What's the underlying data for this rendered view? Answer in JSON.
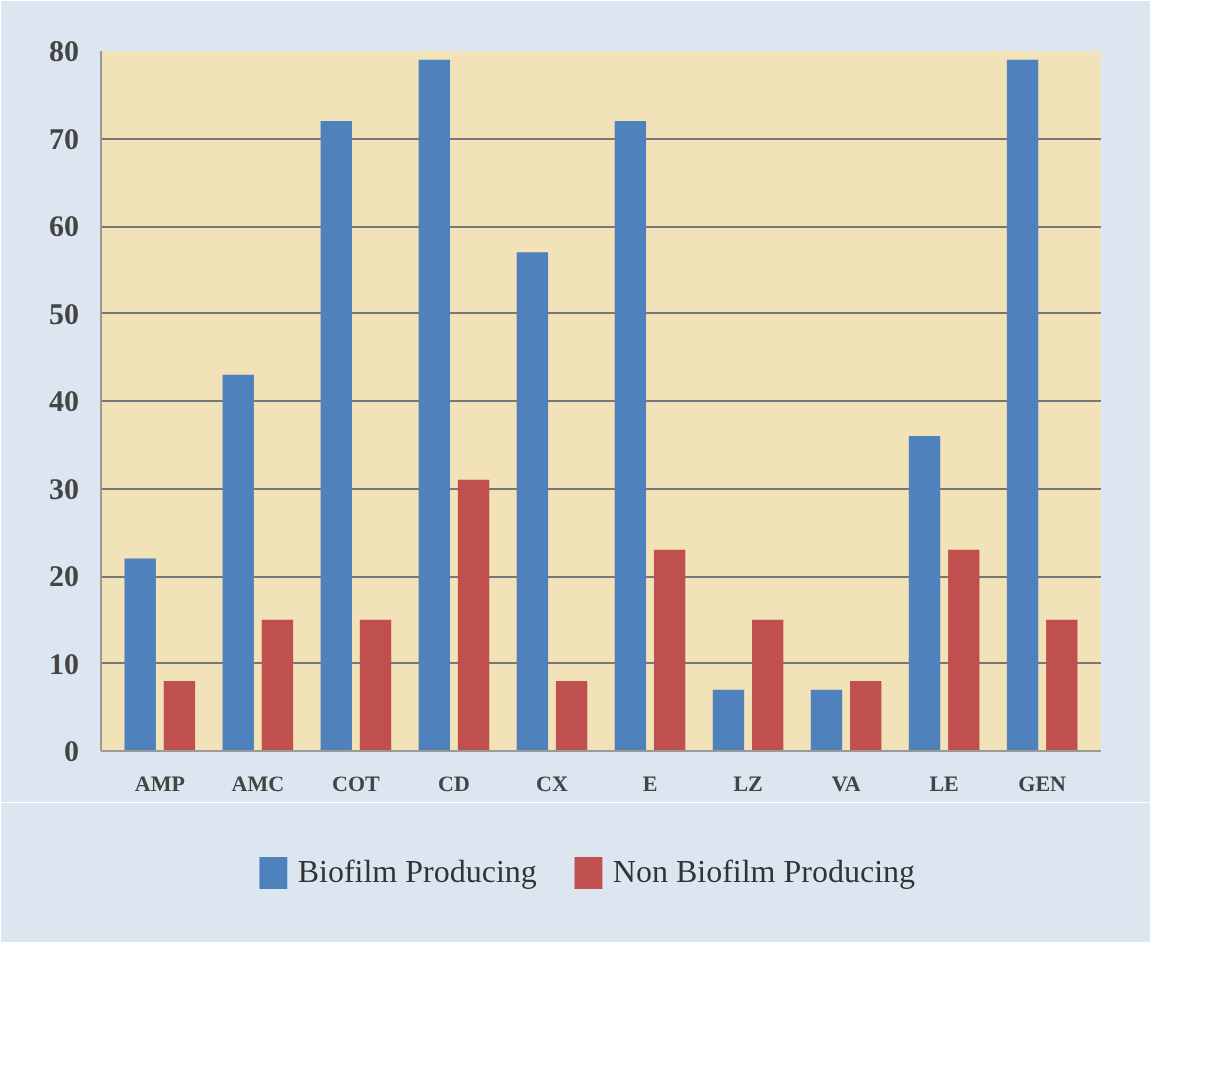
{
  "chart_data": {
    "type": "bar",
    "categories": [
      "AMP",
      "AMC",
      "COT",
      "CD",
      "CX",
      "E",
      "LZ",
      "VA",
      "LE",
      "GEN"
    ],
    "series": [
      {
        "name": "Biofilm Producing",
        "color": "#4f81bd",
        "values": [
          22,
          43,
          72,
          79,
          57,
          72,
          7,
          7,
          36,
          79
        ]
      },
      {
        "name": "Non Biofilm Producing",
        "color": "#c0504d",
        "values": [
          8,
          15,
          15,
          31,
          8,
          23,
          15,
          8,
          23,
          15
        ]
      }
    ],
    "ylim": [
      0,
      80
    ],
    "yticks": [
      0,
      10,
      20,
      30,
      40,
      50,
      60,
      70,
      80
    ],
    "grid": "y",
    "legend": "bottom"
  }
}
